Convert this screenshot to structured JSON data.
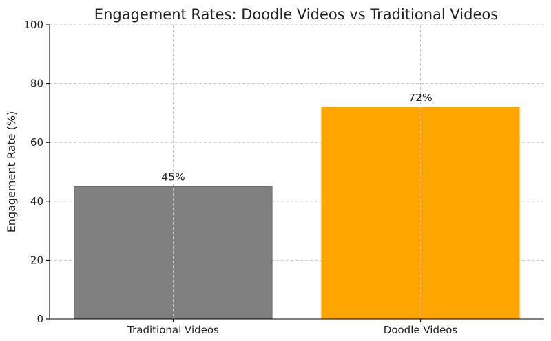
{
  "chart_data": {
    "type": "bar",
    "title": "Engagement Rates: Doodle Videos vs Traditional Videos",
    "xlabel": "",
    "ylabel": "Engagement Rate (%)",
    "categories": [
      "Traditional Videos",
      "Doodle Videos"
    ],
    "values": [
      45,
      72
    ],
    "value_labels": [
      "45%",
      "72%"
    ],
    "bar_colors": [
      "#808080",
      "#FFA500"
    ],
    "bar_edge_colors": [
      "#6a6a6a",
      "#FFA500"
    ],
    "ylim": [
      0,
      100
    ],
    "yticks": [
      0,
      20,
      40,
      60,
      80,
      100
    ],
    "grid": true,
    "legend": "none"
  }
}
